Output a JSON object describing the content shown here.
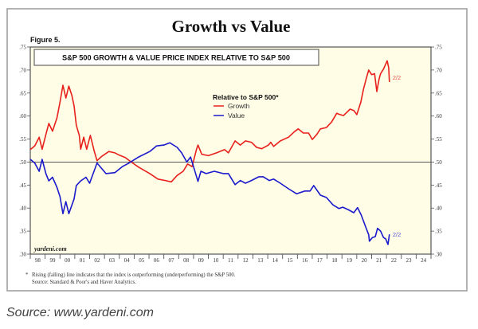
{
  "chart_data": {
    "type": "line",
    "title": "Growth vs Value",
    "figure_label": "Figure 5.",
    "subtitle": "S&P 500 GROWTH & VALUE PRICE INDEX RELATIVE TO S&P 500",
    "xlabel": "",
    "ylabel": "",
    "x_range": [
      1998,
      2025
    ],
    "ylim": [
      0.3,
      0.75
    ],
    "y_ticks": [
      0.3,
      0.35,
      0.4,
      0.45,
      0.5,
      0.55,
      0.6,
      0.65,
      0.7,
      0.75
    ],
    "y_tick_labels": [
      ".30",
      ".35",
      ".40",
      ".45",
      ".50",
      ".55",
      ".60",
      ".65",
      ".70",
      ".75"
    ],
    "x_tick_labels": [
      "98",
      "99",
      "00",
      "01",
      "02",
      "03",
      "04",
      "05",
      "06",
      "07",
      "08",
      "09",
      "10",
      "11",
      "12",
      "13",
      "14",
      "15",
      "16",
      "17",
      "18",
      "19",
      "20",
      "21",
      "22",
      "23",
      "24"
    ],
    "reference_line": 0.5,
    "grid": false,
    "legend": {
      "title": "Relative to S&P 500*",
      "placement": "top-center",
      "entries": [
        "Growth",
        "Value"
      ]
    },
    "series": [
      {
        "name": "Growth",
        "color": "#e8201c",
        "end_label": "2/2",
        "points": [
          [
            1998.0,
            0.527
          ],
          [
            1998.3,
            0.535
          ],
          [
            1998.6,
            0.554
          ],
          [
            1998.8,
            0.528
          ],
          [
            1999.05,
            0.56
          ],
          [
            1999.25,
            0.584
          ],
          [
            1999.5,
            0.567
          ],
          [
            1999.8,
            0.596
          ],
          [
            2000.0,
            0.63
          ],
          [
            2000.2,
            0.667
          ],
          [
            2000.4,
            0.639
          ],
          [
            2000.6,
            0.665
          ],
          [
            2000.8,
            0.645
          ],
          [
            2000.95,
            0.622
          ],
          [
            2001.1,
            0.58
          ],
          [
            2001.3,
            0.558
          ],
          [
            2001.4,
            0.528
          ],
          [
            2001.6,
            0.554
          ],
          [
            2001.8,
            0.528
          ],
          [
            2002.05,
            0.558
          ],
          [
            2002.3,
            0.525
          ],
          [
            2002.5,
            0.503
          ],
          [
            2002.8,
            0.512
          ],
          [
            2003.3,
            0.523
          ],
          [
            2003.7,
            0.52
          ],
          [
            2004.0,
            0.515
          ],
          [
            2004.4,
            0.51
          ],
          [
            2004.8,
            0.5
          ],
          [
            2005.3,
            0.489
          ],
          [
            2006.05,
            0.475
          ],
          [
            2006.6,
            0.463
          ],
          [
            2007.1,
            0.46
          ],
          [
            2007.5,
            0.457
          ],
          [
            2007.9,
            0.471
          ],
          [
            2008.3,
            0.48
          ],
          [
            2008.6,
            0.496
          ],
          [
            2008.9,
            0.49
          ],
          [
            2009.2,
            0.528
          ],
          [
            2009.3,
            0.537
          ],
          [
            2009.55,
            0.517
          ],
          [
            2010.0,
            0.514
          ],
          [
            2010.55,
            0.52
          ],
          [
            2011.1,
            0.527
          ],
          [
            2011.35,
            0.52
          ],
          [
            2011.8,
            0.546
          ],
          [
            2012.15,
            0.537
          ],
          [
            2012.5,
            0.546
          ],
          [
            2012.9,
            0.543
          ],
          [
            2013.25,
            0.532
          ],
          [
            2013.6,
            0.529
          ],
          [
            2014.05,
            0.537
          ],
          [
            2014.2,
            0.543
          ],
          [
            2014.4,
            0.534
          ],
          [
            2014.85,
            0.546
          ],
          [
            2015.4,
            0.554
          ],
          [
            2015.8,
            0.566
          ],
          [
            2016.05,
            0.572
          ],
          [
            2016.4,
            0.563
          ],
          [
            2016.75,
            0.563
          ],
          [
            2017.0,
            0.549
          ],
          [
            2017.3,
            0.56
          ],
          [
            2017.55,
            0.572
          ],
          [
            2017.95,
            0.575
          ],
          [
            2018.3,
            0.587
          ],
          [
            2018.65,
            0.606
          ],
          [
            2018.8,
            0.604
          ],
          [
            2019.1,
            0.601
          ],
          [
            2019.55,
            0.615
          ],
          [
            2019.8,
            0.612
          ],
          [
            2020.0,
            0.603
          ],
          [
            2020.27,
            0.63
          ],
          [
            2020.45,
            0.658
          ],
          [
            2020.65,
            0.683
          ],
          [
            2020.8,
            0.7
          ],
          [
            2021.0,
            0.69
          ],
          [
            2021.2,
            0.692
          ],
          [
            2021.35,
            0.653
          ],
          [
            2021.5,
            0.68
          ],
          [
            2021.6,
            0.692
          ],
          [
            2021.8,
            0.702
          ],
          [
            2022.05,
            0.72
          ],
          [
            2022.15,
            0.705
          ],
          [
            2022.2,
            0.674
          ]
        ]
      },
      {
        "name": "Value",
        "color": "#1a1acc",
        "end_label": "2/2",
        "points": [
          [
            1998.0,
            0.506
          ],
          [
            1998.3,
            0.498
          ],
          [
            1998.6,
            0.48
          ],
          [
            1998.8,
            0.506
          ],
          [
            1999.05,
            0.475
          ],
          [
            1999.25,
            0.459
          ],
          [
            1999.5,
            0.467
          ],
          [
            1999.8,
            0.445
          ],
          [
            2000.0,
            0.425
          ],
          [
            2000.2,
            0.388
          ],
          [
            2000.4,
            0.414
          ],
          [
            2000.6,
            0.388
          ],
          [
            2000.95,
            0.42
          ],
          [
            2001.1,
            0.449
          ],
          [
            2001.4,
            0.459
          ],
          [
            2001.75,
            0.467
          ],
          [
            2002.0,
            0.454
          ],
          [
            2002.5,
            0.498
          ],
          [
            2003.1,
            0.475
          ],
          [
            2003.7,
            0.477
          ],
          [
            2004.2,
            0.49
          ],
          [
            2004.6,
            0.497
          ],
          [
            2005.3,
            0.511
          ],
          [
            2006.05,
            0.523
          ],
          [
            2006.5,
            0.535
          ],
          [
            2007.0,
            0.537
          ],
          [
            2007.4,
            0.542
          ],
          [
            2007.9,
            0.532
          ],
          [
            2008.2,
            0.52
          ],
          [
            2008.55,
            0.5
          ],
          [
            2008.8,
            0.511
          ],
          [
            2009.0,
            0.49
          ],
          [
            2009.3,
            0.458
          ],
          [
            2009.5,
            0.48
          ],
          [
            2009.85,
            0.475
          ],
          [
            2010.4,
            0.48
          ],
          [
            2011.0,
            0.475
          ],
          [
            2011.35,
            0.475
          ],
          [
            2011.8,
            0.451
          ],
          [
            2012.15,
            0.46
          ],
          [
            2012.5,
            0.454
          ],
          [
            2012.9,
            0.46
          ],
          [
            2013.4,
            0.468
          ],
          [
            2013.7,
            0.468
          ],
          [
            2014.1,
            0.46
          ],
          [
            2014.4,
            0.463
          ],
          [
            2014.85,
            0.454
          ],
          [
            2015.4,
            0.442
          ],
          [
            2015.95,
            0.431
          ],
          [
            2016.5,
            0.437
          ],
          [
            2016.85,
            0.437
          ],
          [
            2017.1,
            0.449
          ],
          [
            2017.55,
            0.428
          ],
          [
            2017.95,
            0.423
          ],
          [
            2018.4,
            0.407
          ],
          [
            2018.8,
            0.399
          ],
          [
            2019.05,
            0.402
          ],
          [
            2019.4,
            0.397
          ],
          [
            2019.8,
            0.39
          ],
          [
            2020.05,
            0.401
          ],
          [
            2020.3,
            0.385
          ],
          [
            2020.6,
            0.359
          ],
          [
            2020.8,
            0.342
          ],
          [
            2020.85,
            0.328
          ],
          [
            2021.05,
            0.336
          ],
          [
            2021.25,
            0.338
          ],
          [
            2021.4,
            0.356
          ],
          [
            2021.6,
            0.35
          ],
          [
            2021.8,
            0.336
          ],
          [
            2021.95,
            0.333
          ],
          [
            2022.1,
            0.321
          ],
          [
            2022.2,
            0.343
          ]
        ]
      }
    ],
    "watermark": "yardeni.com",
    "footnote_marker": "*",
    "footnote": "Rising (falling) line indicates that the index is outperforming (underperforming) the S&P 500.",
    "footnote_source": "Source: Standard & Poor's and Haver Analytics.",
    "colors": {
      "plot_background": "#fffde6",
      "growth": "#e8201c",
      "value": "#1a1acc"
    }
  },
  "caption": "Source: www.yardeni.com"
}
